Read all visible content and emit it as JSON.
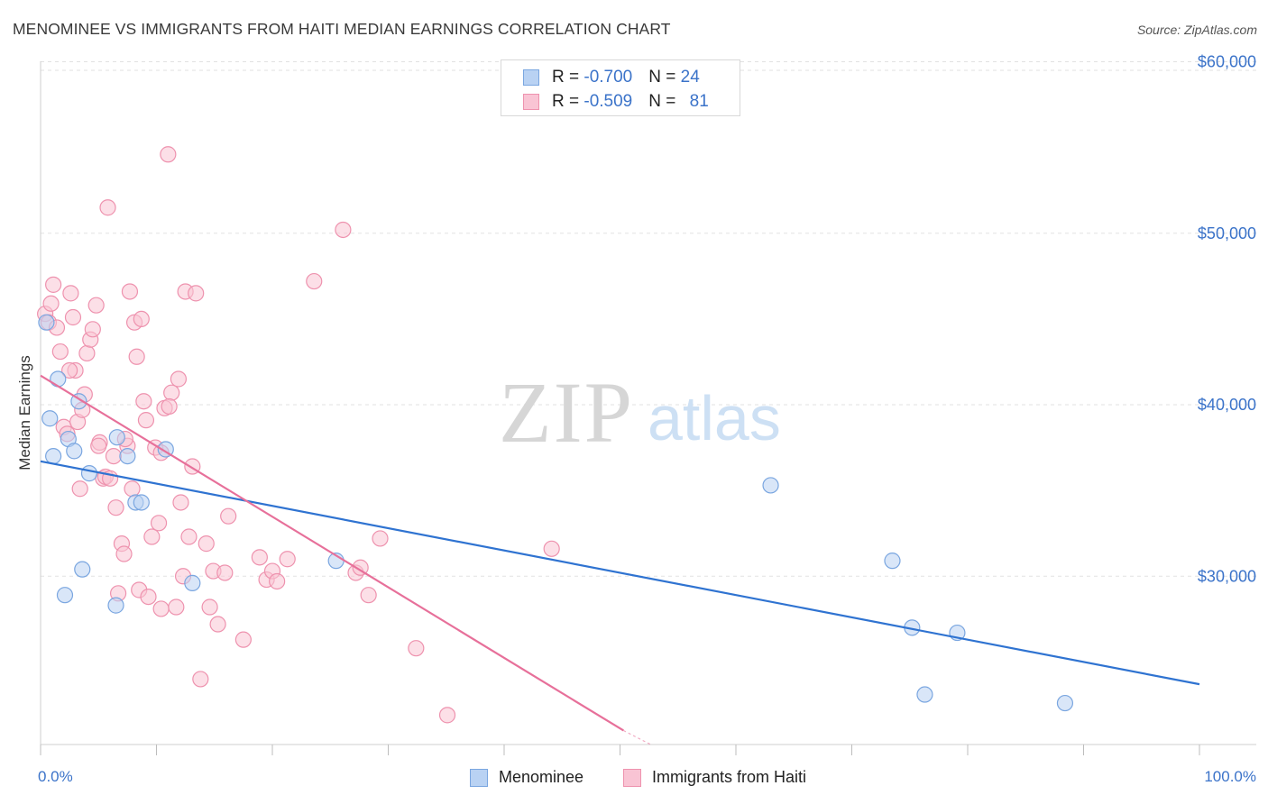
{
  "title": "MENOMINEE VS IMMIGRANTS FROM HAITI MEDIAN EARNINGS CORRELATION CHART",
  "source": "Source: ZipAtlas.com",
  "watermark": {
    "zip": "ZIP",
    "atlas": "atlas"
  },
  "legend_top": {
    "rows": [
      {
        "r_label": "R = ",
        "r_value": "-0.700",
        "n_label": "N = ",
        "n_value": "24"
      },
      {
        "r_label": "R = ",
        "r_value": "-0.509",
        "n_label": "N = ",
        "n_value": "81"
      }
    ]
  },
  "colors": {
    "blue_fill": "#b9d2f3",
    "blue_stroke": "#7aa6e0",
    "blue_line": "#2f73d1",
    "pink_fill": "#f9c4d4",
    "pink_stroke": "#ee92ae",
    "pink_line": "#e7709a",
    "axis_text": "#3b73c9",
    "grid": "#e2e2e2"
  },
  "chart_data": {
    "type": "scatter",
    "title": "MENOMINEE VS IMMIGRANTS FROM HAITI MEDIAN EARNINGS CORRELATION CHART",
    "xlabel": "",
    "ylabel": "Median Earnings",
    "xlim": [
      0,
      100
    ],
    "ylim": [
      20500,
      61500
    ],
    "x_tick_labels": [
      "0.0%",
      "100.0%"
    ],
    "y_ticks": [
      30000,
      40000,
      50000,
      60000
    ],
    "y_tick_labels": [
      "$30,000",
      "$40,000",
      "$50,000",
      "$60,000"
    ],
    "grid": true,
    "legend_position": "bottom",
    "series": [
      {
        "name": "Menominee",
        "color": "#b9d2f3",
        "points": [
          [
            0.5,
            44.8
          ],
          [
            0.8,
            39.2
          ],
          [
            1.1,
            37.0
          ],
          [
            1.5,
            41.5
          ],
          [
            2.1,
            28.9
          ],
          [
            2.4,
            38.0
          ],
          [
            2.9,
            37.3
          ],
          [
            3.3,
            40.2
          ],
          [
            3.6,
            30.4
          ],
          [
            4.2,
            36.0
          ],
          [
            6.5,
            28.3
          ],
          [
            7.5,
            37.0
          ],
          [
            6.6,
            38.1
          ],
          [
            8.2,
            34.3
          ],
          [
            8.7,
            34.3
          ],
          [
            10.8,
            37.4
          ],
          [
            13.1,
            29.6
          ],
          [
            25.5,
            30.9
          ],
          [
            63.0,
            35.3
          ],
          [
            73.5,
            30.9
          ],
          [
            75.2,
            27.0
          ],
          [
            79.1,
            26.7
          ],
          [
            88.4,
            22.6
          ],
          [
            76.3,
            23.1
          ]
        ],
        "trend": {
          "x": [
            0,
            100
          ],
          "y": [
            36700,
            23700
          ]
        }
      },
      {
        "name": "Immigrants from Haiti",
        "color": "#f9c4d4",
        "points": [
          [
            0.4,
            45.3
          ],
          [
            0.7,
            44.8
          ],
          [
            0.9,
            45.9
          ],
          [
            1.1,
            47.0
          ],
          [
            1.4,
            44.5
          ],
          [
            1.7,
            43.1
          ],
          [
            2.0,
            38.7
          ],
          [
            2.3,
            38.3
          ],
          [
            2.6,
            46.5
          ],
          [
            2.8,
            45.1
          ],
          [
            3.0,
            42.0
          ],
          [
            3.2,
            39.0
          ],
          [
            3.4,
            35.1
          ],
          [
            3.6,
            39.7
          ],
          [
            3.8,
            40.6
          ],
          [
            4.0,
            43.0
          ],
          [
            4.3,
            43.8
          ],
          [
            4.5,
            44.4
          ],
          [
            4.8,
            45.8
          ],
          [
            5.1,
            37.8
          ],
          [
            5.4,
            35.7
          ],
          [
            5.6,
            35.8
          ],
          [
            5.8,
            51.5
          ],
          [
            6.0,
            35.7
          ],
          [
            6.3,
            37.0
          ],
          [
            6.5,
            34.0
          ],
          [
            6.7,
            29.0
          ],
          [
            7.0,
            31.9
          ],
          [
            7.2,
            31.3
          ],
          [
            7.5,
            37.6
          ],
          [
            7.7,
            46.6
          ],
          [
            7.9,
            35.1
          ],
          [
            8.1,
            44.8
          ],
          [
            8.3,
            42.8
          ],
          [
            8.5,
            29.2
          ],
          [
            8.7,
            45.0
          ],
          [
            8.9,
            40.2
          ],
          [
            9.1,
            39.1
          ],
          [
            9.3,
            28.8
          ],
          [
            9.6,
            32.3
          ],
          [
            9.9,
            37.5
          ],
          [
            10.2,
            33.1
          ],
          [
            10.4,
            28.1
          ],
          [
            10.7,
            39.8
          ],
          [
            11.0,
            54.6
          ],
          [
            11.3,
            40.7
          ],
          [
            11.7,
            28.2
          ],
          [
            11.9,
            41.5
          ],
          [
            12.1,
            34.3
          ],
          [
            12.3,
            30.0
          ],
          [
            12.5,
            46.6
          ],
          [
            12.8,
            32.3
          ],
          [
            13.1,
            36.4
          ],
          [
            13.4,
            46.5
          ],
          [
            13.8,
            24.0
          ],
          [
            14.3,
            31.9
          ],
          [
            14.6,
            28.2
          ],
          [
            14.9,
            30.3
          ],
          [
            15.3,
            27.2
          ],
          [
            15.9,
            30.2
          ],
          [
            16.2,
            33.5
          ],
          [
            17.5,
            26.3
          ],
          [
            18.9,
            31.1
          ],
          [
            19.5,
            29.8
          ],
          [
            20.0,
            30.3
          ],
          [
            20.4,
            29.7
          ],
          [
            21.3,
            31.0
          ],
          [
            23.6,
            47.2
          ],
          [
            26.1,
            50.2
          ],
          [
            27.2,
            30.2
          ],
          [
            27.6,
            30.5
          ],
          [
            28.3,
            28.9
          ],
          [
            29.3,
            32.2
          ],
          [
            32.4,
            25.8
          ],
          [
            35.1,
            21.9
          ],
          [
            44.1,
            31.6
          ],
          [
            10.4,
            37.2
          ],
          [
            5.0,
            37.6
          ],
          [
            2.5,
            42.0
          ],
          [
            7.3,
            38.0
          ],
          [
            11.1,
            39.9
          ]
        ],
        "trend": {
          "x": [
            0,
            50.3
          ],
          "y": [
            41700,
            21000
          ]
        },
        "trend_dashed": {
          "x": [
            50.3,
            52.6
          ],
          "y": [
            21000,
            20200
          ]
        }
      }
    ]
  },
  "legend_bottom": {
    "items": [
      "Menominee",
      "Immigrants from Haiti"
    ]
  }
}
